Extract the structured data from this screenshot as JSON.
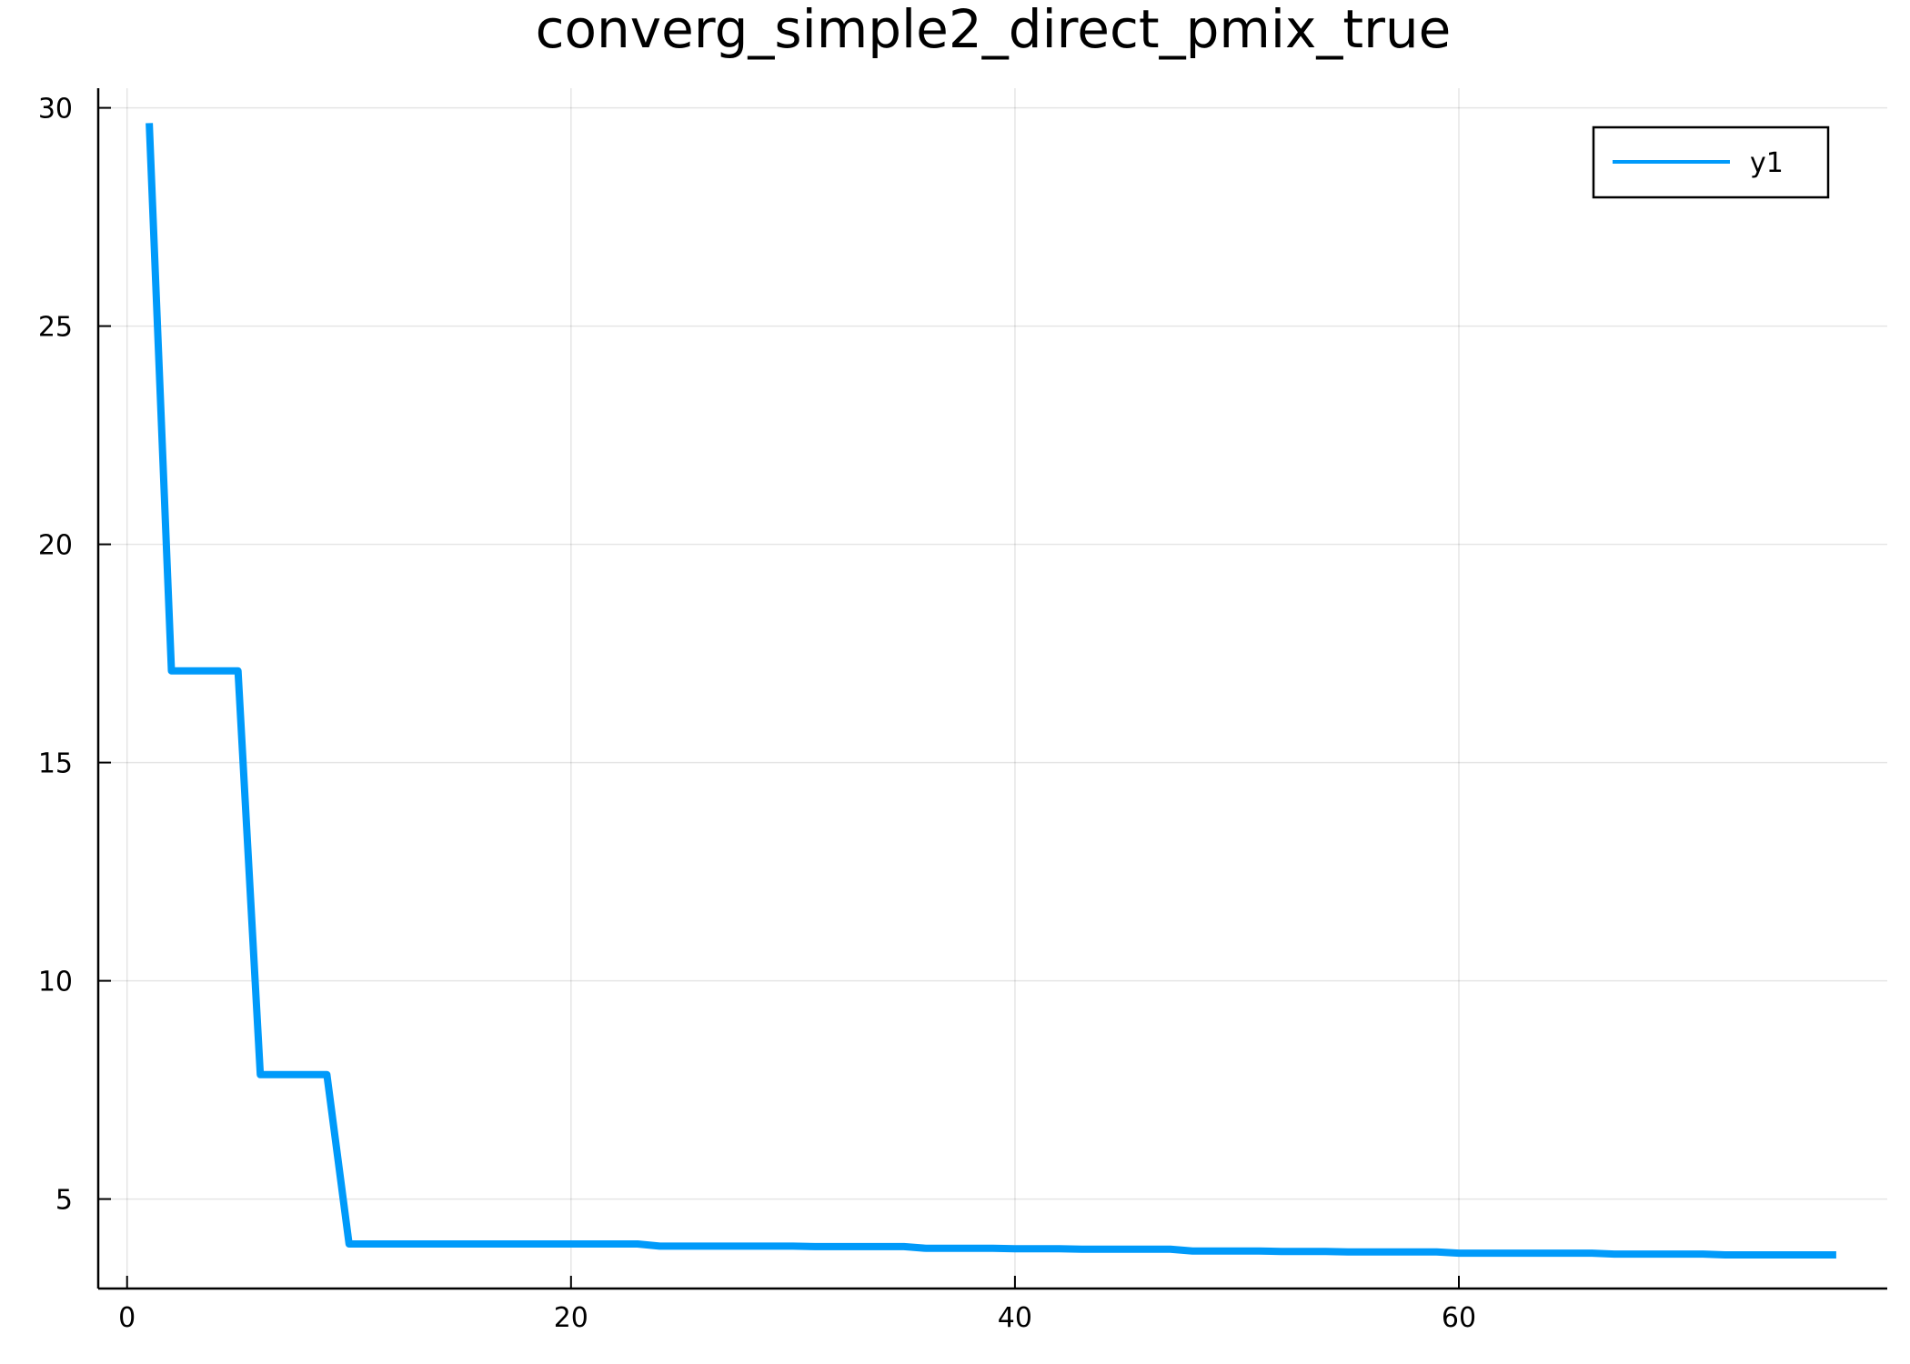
{
  "chart_data": {
    "type": "line",
    "title": "converg_simple2_direct_pmix_true",
    "xlabel": "",
    "ylabel": "",
    "xlim": [
      -1.3,
      79.3
    ],
    "ylim": [
      2.95,
      30.45
    ],
    "x_ticks": [
      0,
      20,
      40,
      60
    ],
    "y_ticks": [
      5,
      10,
      15,
      20,
      25,
      30
    ],
    "grid": true,
    "legend": "top-right",
    "series": [
      {
        "name": "y1",
        "color": "#009AFA",
        "x": [
          1,
          2,
          3,
          4,
          5,
          6,
          7,
          8,
          9,
          10,
          11,
          12,
          13,
          14,
          15,
          16,
          17,
          18,
          19,
          20,
          21,
          22,
          23,
          24,
          25,
          26,
          27,
          28,
          29,
          30,
          31,
          32,
          33,
          34,
          35,
          36,
          37,
          38,
          39,
          40,
          41,
          42,
          43,
          44,
          45,
          46,
          47,
          48,
          49,
          50,
          51,
          52,
          53,
          54,
          55,
          56,
          57,
          58,
          59,
          60,
          61,
          62,
          63,
          64,
          65,
          66,
          67,
          68,
          69,
          70,
          71,
          72,
          73,
          74,
          75,
          76,
          77
        ],
        "values": [
          29.65,
          17.1,
          17.1,
          17.1,
          17.1,
          7.85,
          7.85,
          7.85,
          7.85,
          3.97,
          3.97,
          3.97,
          3.97,
          3.97,
          3.97,
          3.97,
          3.97,
          3.97,
          3.97,
          3.97,
          3.97,
          3.97,
          3.97,
          3.92,
          3.92,
          3.92,
          3.92,
          3.92,
          3.92,
          3.92,
          3.91,
          3.91,
          3.91,
          3.91,
          3.91,
          3.87,
          3.87,
          3.87,
          3.87,
          3.86,
          3.86,
          3.86,
          3.85,
          3.85,
          3.85,
          3.85,
          3.85,
          3.81,
          3.81,
          3.81,
          3.81,
          3.8,
          3.8,
          3.8,
          3.79,
          3.79,
          3.79,
          3.79,
          3.79,
          3.76,
          3.76,
          3.76,
          3.76,
          3.76,
          3.76,
          3.76,
          3.74,
          3.74,
          3.74,
          3.74,
          3.74,
          3.72,
          3.72,
          3.72,
          3.72,
          3.72,
          3.72
        ]
      }
    ]
  }
}
